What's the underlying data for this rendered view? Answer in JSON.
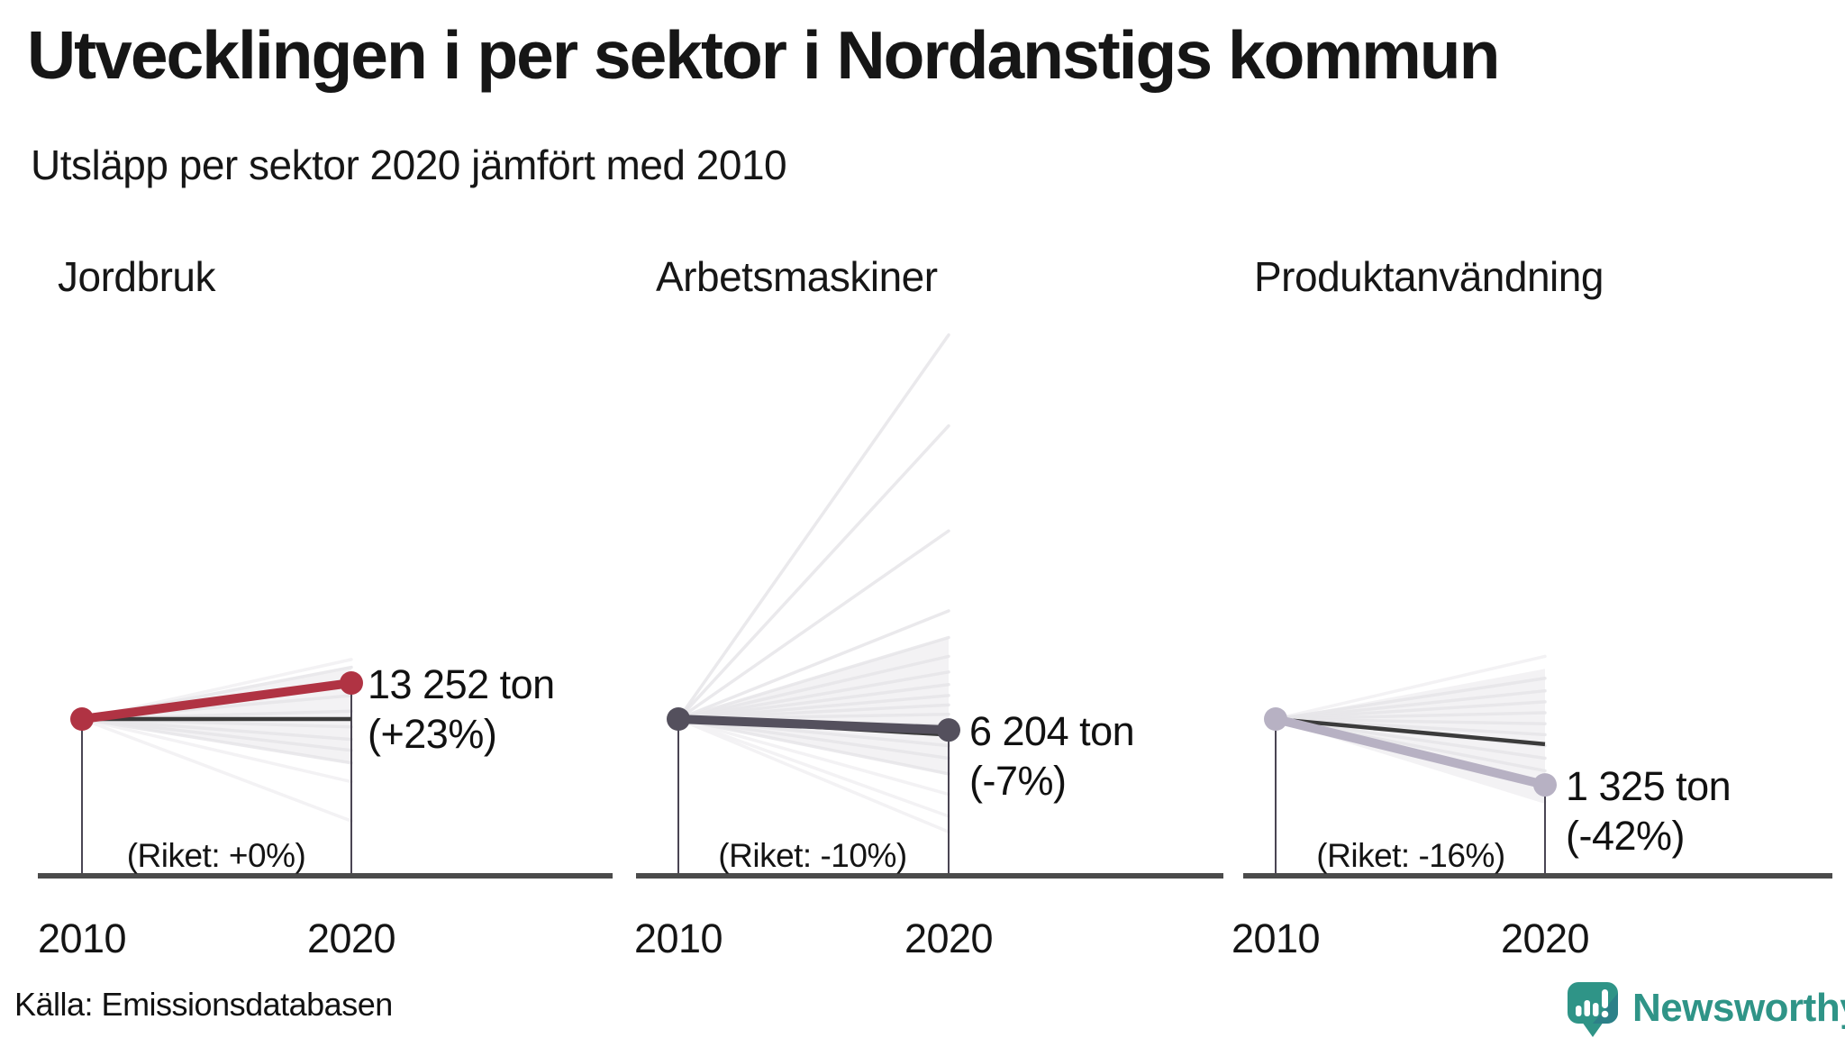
{
  "header": {
    "title": "Utvecklingen i per sektor i Nordanstigs kommun",
    "subtitle": "Utsläpp per sektor 2020 jämfört med 2010"
  },
  "source": {
    "label": "Källa: Emissionsdatabasen"
  },
  "brand": {
    "name": "Newsworthy",
    "icon": "newsworthy-speech-bubble-chart-logo"
  },
  "colors": {
    "text": "#161616",
    "agriculture_line": "#b03343",
    "machinery_line": "#54505d",
    "product_line": "#b7b1c3",
    "riket_line": "#3b3b3b",
    "baseline": "#4b4b4b",
    "dropline": "#4a4553",
    "fan_line": "#e7e6e9",
    "fan_light": "#f3f2f4",
    "wedge_fill": "#ebeaec",
    "brand_teal": "#2f9487",
    "brand_dark": "#2b7489"
  },
  "chart_data": [
    {
      "type": "line",
      "subtype": "slope",
      "name": "Jordbruk",
      "x": [
        "2010",
        "2020"
      ],
      "municipality": {
        "value_2020_label": "13 252 ton",
        "pct_label": "(+23%)",
        "pct": 23
      },
      "riket": {
        "label": "(Riket: +0%)",
        "pct": 0
      },
      "color": "#b03343",
      "wedge": [
        32,
        -28
      ],
      "fan_pcts": [
        33,
        25,
        15,
        5,
        -5,
        -13,
        -20,
        -28
      ],
      "fan_light_pcts": [
        38,
        -40,
        -65
      ]
    },
    {
      "type": "line",
      "subtype": "slope",
      "name": "Arbetsmaskiner",
      "x": [
        "2010",
        "2020"
      ],
      "municipality": {
        "value_2020_label": "6 204 ton",
        "pct_label": "(-7%)",
        "pct": -7
      },
      "riket": {
        "label": "(Riket: -10%)",
        "pct": -10
      },
      "color": "#54505d",
      "wedge": [
        52,
        -35
      ],
      "fan_pcts": [
        245,
        187,
        120,
        69,
        52,
        40,
        30,
        22,
        15,
        9,
        3,
        -4,
        -10,
        -17,
        -25,
        -35
      ],
      "fan_light_pcts": [
        -48,
        -62,
        -72
      ]
    },
    {
      "type": "line",
      "subtype": "slope",
      "name": "Produktanvändning",
      "x": [
        "2010",
        "2020"
      ],
      "municipality": {
        "value_2020_label": "1 325 ton",
        "pct_label": "(-42%)",
        "pct": -42
      },
      "riket": {
        "label": "(Riket: -16%)",
        "pct": -16
      },
      "color": "#b7b1c3",
      "wedge": [
        32,
        -53
      ],
      "fan_pcts": [
        26,
        18,
        11,
        4,
        -3,
        -10,
        -17,
        -25,
        -33
      ],
      "fan_light_pcts": [
        40,
        -53
      ]
    }
  ]
}
